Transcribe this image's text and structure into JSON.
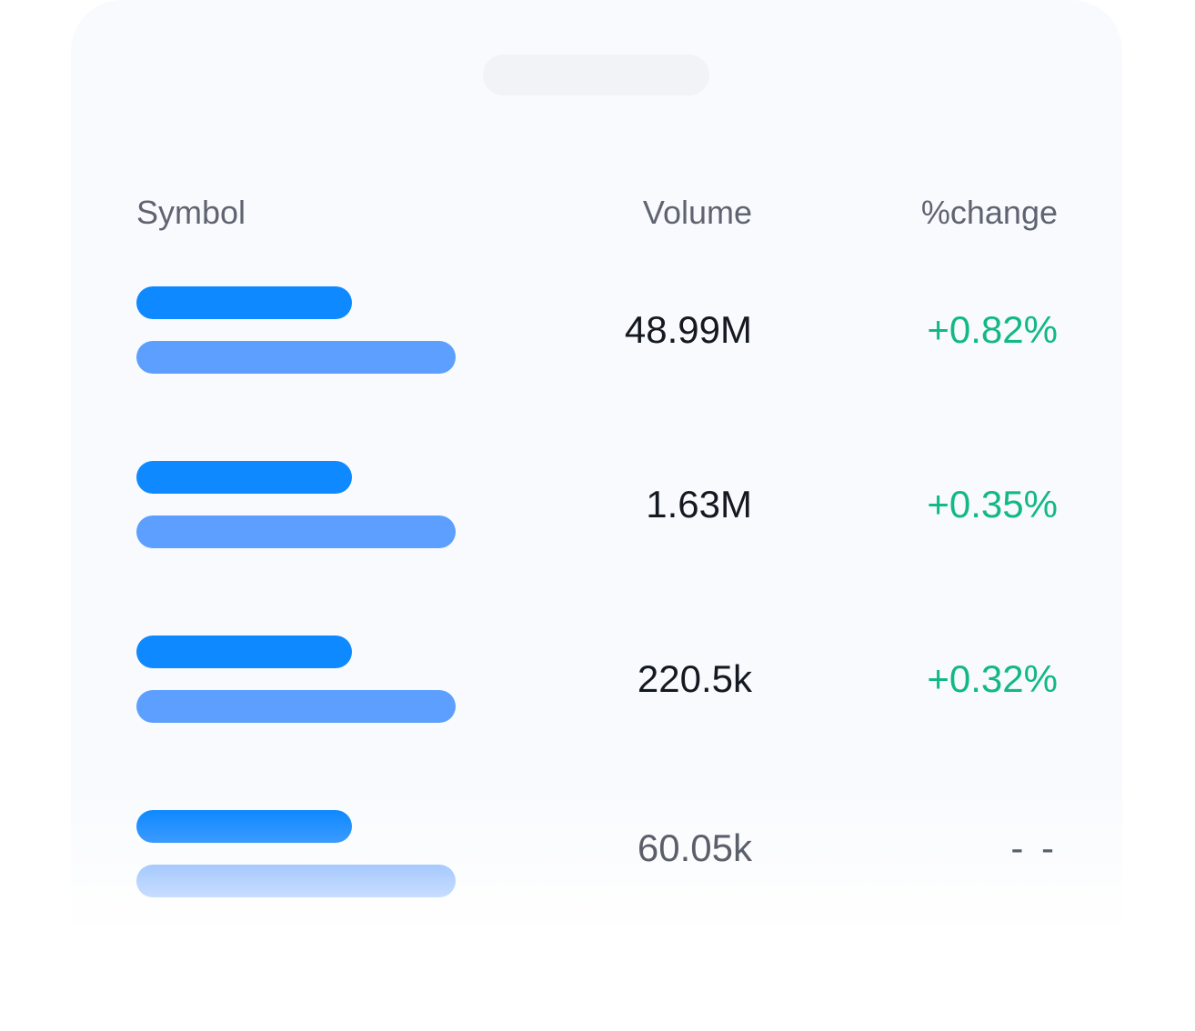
{
  "table": {
    "columns": {
      "symbol": "Symbol",
      "volume": "Volume",
      "change": "%change"
    },
    "rows": [
      {
        "volume": "48.99M",
        "change": "+0.82%"
      },
      {
        "volume": "1.63M",
        "change": "+0.35%"
      },
      {
        "volume": "220.5k",
        "change": "+0.32%"
      },
      {
        "volume": "60.05k",
        "change": "- -"
      }
    ]
  },
  "colors": {
    "accent_blue": "#0e89ff",
    "secondary_blue": "#5c9fff",
    "positive_green": "#12b886",
    "header_gray": "#5f6470",
    "value_dark": "#141820"
  }
}
